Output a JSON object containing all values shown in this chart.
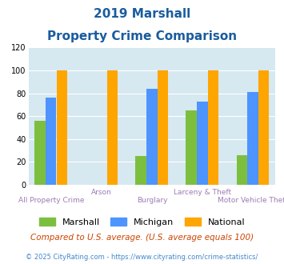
{
  "title_line1": "2019 Marshall",
  "title_line2": "Property Crime Comparison",
  "category_labels_row1": [
    "",
    "Arson",
    "",
    "Larceny & Theft",
    ""
  ],
  "category_labels_row2": [
    "All Property Crime",
    "",
    "Burglary",
    "",
    "Motor Vehicle Theft"
  ],
  "marshall_values": [
    56,
    0,
    25,
    65,
    26
  ],
  "michigan_values": [
    76,
    0,
    84,
    73,
    81
  ],
  "national_values": [
    100,
    100,
    100,
    100,
    100
  ],
  "marshall_color": "#7CBF3F",
  "michigan_color": "#4D94FF",
  "national_color": "#FFA500",
  "ylim": [
    0,
    120
  ],
  "yticks": [
    0,
    20,
    40,
    60,
    80,
    100,
    120
  ],
  "background_color": "#D6E8F0",
  "legend_labels": [
    "Marshall",
    "Michigan",
    "National"
  ],
  "footnote1": "Compared to U.S. average. (U.S. average equals 100)",
  "footnote2": "© 2025 CityRating.com - https://www.cityrating.com/crime-statistics/",
  "title_color": "#1A5C9E",
  "xlabel_color": "#9E7BB5",
  "footnote1_color": "#CC4400",
  "footnote2_color": "#4488CC"
}
